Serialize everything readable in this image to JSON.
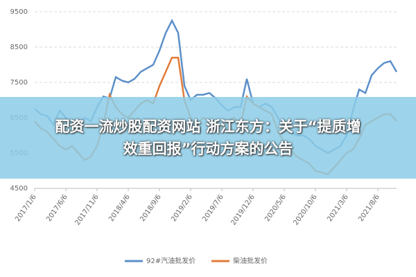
{
  "chart_data": {
    "type": "line",
    "categories": [
      "2017/1/6",
      null,
      null,
      null,
      null,
      "2017/6/6",
      null,
      null,
      null,
      null,
      "2017/11/6",
      null,
      null,
      null,
      null,
      "2018/4/6",
      null,
      null,
      null,
      null,
      "2018/9/6",
      null,
      null,
      null,
      null,
      "2019/2/6",
      null,
      null,
      null,
      null,
      "2019/7/6",
      null,
      null,
      null,
      null,
      "2019/12/6",
      null,
      null,
      null,
      null,
      "2020/5/6",
      null,
      null,
      null,
      null,
      "2020/10/6",
      null,
      null,
      null,
      null,
      "2021/3/6",
      null,
      null,
      null,
      null,
      "2021/8/6",
      null,
      null,
      null
    ],
    "series": [
      {
        "name": "92#汽油批发价",
        "color": "#5b8fc9",
        "values": [
          6750,
          6600,
          6550,
          6300,
          6700,
          6500,
          6300,
          6300,
          6500,
          6400,
          6800,
          7100,
          7050,
          7650,
          7550,
          7500,
          7600,
          7800,
          7900,
          8000,
          8400,
          8900,
          9250,
          8900,
          7400,
          7000,
          7150,
          7150,
          7200,
          7050,
          6850,
          6700,
          6800,
          6800,
          7600,
          6900,
          6800,
          6900,
          6800,
          6500,
          6200,
          6100,
          6000,
          6000,
          5900,
          5700,
          5600,
          5500,
          5600,
          5700,
          6000,
          6700,
          7300,
          7200,
          7700,
          7900,
          8050,
          8100,
          7800
        ]
      },
      {
        "name": "柴油批发价",
        "color": "#e07b39",
        "values": [
          6400,
          6200,
          6100,
          5900,
          5700,
          5600,
          5700,
          5500,
          5300,
          5400,
          5700,
          6300,
          7150,
          6800,
          6600,
          6500,
          6700,
          6900,
          7000,
          6900,
          7400,
          7800,
          8200,
          8200,
          7000,
          6500,
          6300,
          6500,
          6400,
          6300,
          6200,
          6400,
          6500,
          6300,
          7100,
          6900,
          6800,
          6700,
          6600,
          6100,
          5800,
          5600,
          5400,
          5300,
          5200,
          5000,
          4950,
          4900,
          5100,
          5300,
          5500,
          5600,
          5900,
          6300,
          6400,
          6500,
          6600,
          6600,
          6400
        ]
      }
    ],
    "ylim": [
      4500,
      9500
    ],
    "yticks": [
      4500,
      5500,
      6500,
      7500,
      8500,
      9500
    ],
    "grid": true,
    "legend": "bottom"
  },
  "overlay": {
    "line1": "配资一流炒股配资网站 浙江东方：关于“提质增",
    "line2": "效重回报”行动方案的公告"
  }
}
